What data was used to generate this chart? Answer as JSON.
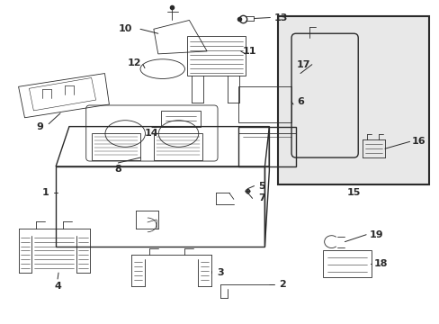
{
  "bg_color": "#ffffff",
  "line_color": "#2a2a2a",
  "inset_bg": "#e8e8e8",
  "fig_w": 4.89,
  "fig_h": 3.6,
  "dpi": 100
}
